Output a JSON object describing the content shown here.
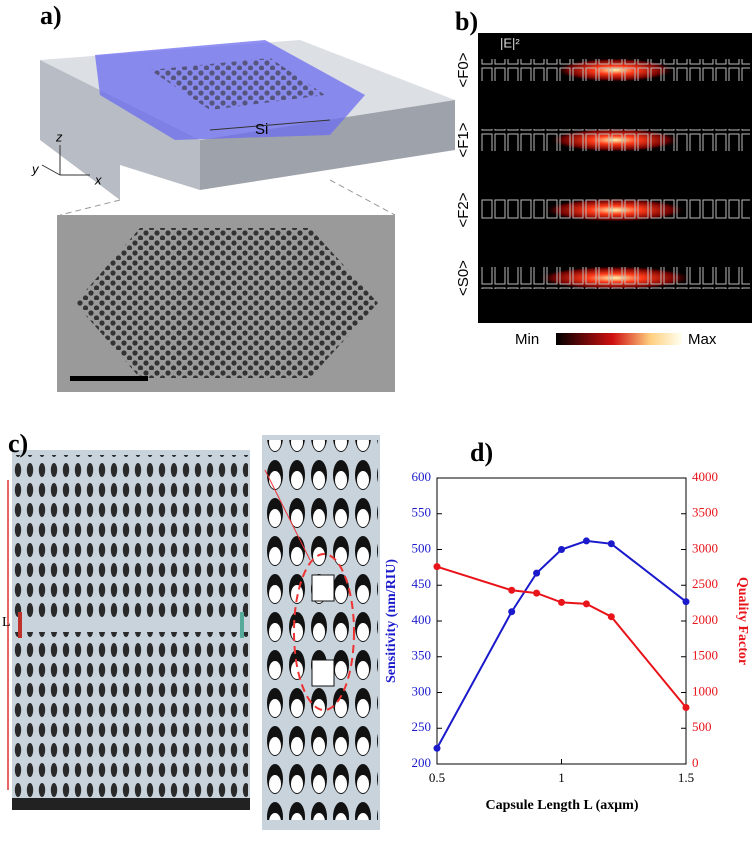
{
  "panels": {
    "a": {
      "label": "a)",
      "material": "Si",
      "axis_x": "x",
      "axis_y": "y",
      "axis_z": "z"
    },
    "b": {
      "label": "b)",
      "field": "|E|²",
      "modes": [
        "<F0>",
        "<F1>",
        "<F2>",
        "<S0>"
      ],
      "min": "Min",
      "max": "Max"
    },
    "c": {
      "label": "c)",
      "length": "L"
    }
  },
  "chart_data": {
    "type": "line",
    "label": "d)",
    "x_label": "Capsule Length L (axμm)",
    "y_label": "Sensitivity (nm/RIU)",
    "y2_label": "Quality Factor",
    "x": [
      0.5,
      0.8,
      0.9,
      1.0,
      1.1,
      1.2,
      1.5
    ],
    "series": [
      {
        "name": "Sensitivity",
        "color": "#1a1acc",
        "values": [
          222,
          413,
          467,
          500,
          512,
          508,
          427
        ]
      },
      {
        "name": "Quality Factor",
        "color": "#e8141a",
        "axis": "y2",
        "values": [
          2760,
          2430,
          2390,
          2260,
          2240,
          2060,
          790
        ]
      }
    ],
    "xlim": [
      0.5,
      1.5
    ],
    "xticks": [
      0.5,
      1,
      1.5
    ],
    "ylim": [
      200,
      600
    ],
    "yticks": [
      200,
      250,
      300,
      350,
      400,
      450,
      500,
      550,
      600
    ],
    "y2lim": [
      0,
      4000
    ],
    "y2ticks": [
      0,
      500,
      1000,
      1500,
      2000,
      2500,
      3000,
      3500,
      4000
    ]
  }
}
